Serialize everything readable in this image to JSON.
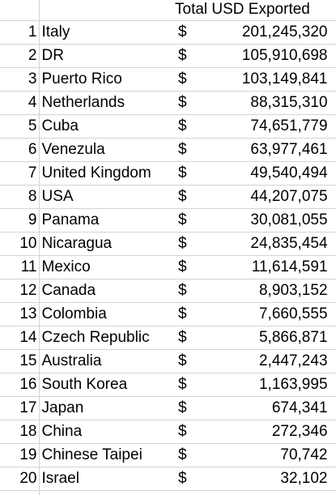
{
  "table": {
    "header": {
      "title": "Total USD Exported"
    },
    "currency_symbol": "$",
    "rows": [
      {
        "rank": "1",
        "country": "Italy",
        "value": "201,245,320"
      },
      {
        "rank": "2",
        "country": "DR",
        "value": "105,910,698"
      },
      {
        "rank": "3",
        "country": "Puerto Rico",
        "value": "103,149,841"
      },
      {
        "rank": "4",
        "country": "Netherlands",
        "value": "88,315,310"
      },
      {
        "rank": "5",
        "country": "Cuba",
        "value": "74,651,779"
      },
      {
        "rank": "6",
        "country": "Venezula",
        "value": "63,977,461"
      },
      {
        "rank": "7",
        "country": "United Kingdom",
        "value": "49,540,494"
      },
      {
        "rank": "8",
        "country": "USA",
        "value": "44,207,075"
      },
      {
        "rank": "9",
        "country": "Panama",
        "value": "30,081,055"
      },
      {
        "rank": "10",
        "country": "Nicaragua",
        "value": "24,835,454"
      },
      {
        "rank": "11",
        "country": "Mexico",
        "value": "11,614,591"
      },
      {
        "rank": "12",
        "country": "Canada",
        "value": "8,903,152"
      },
      {
        "rank": "13",
        "country": "Colombia",
        "value": "7,660,555"
      },
      {
        "rank": "14",
        "country": "Czech Republic",
        "value": "5,866,871"
      },
      {
        "rank": "15",
        "country": "Australia",
        "value": "2,447,243"
      },
      {
        "rank": "16",
        "country": "South Korea",
        "value": "1,163,995"
      },
      {
        "rank": "17",
        "country": "Japan",
        "value": "674,341"
      },
      {
        "rank": "18",
        "country": "China",
        "value": "272,346"
      },
      {
        "rank": "19",
        "country": "Chinese Taipei",
        "value": "70,742"
      },
      {
        "rank": "20",
        "country": "Israel",
        "value": "32,102"
      }
    ]
  },
  "colors": {
    "gridline": "#d4d4d4",
    "text": "#000000",
    "background": "#ffffff"
  }
}
